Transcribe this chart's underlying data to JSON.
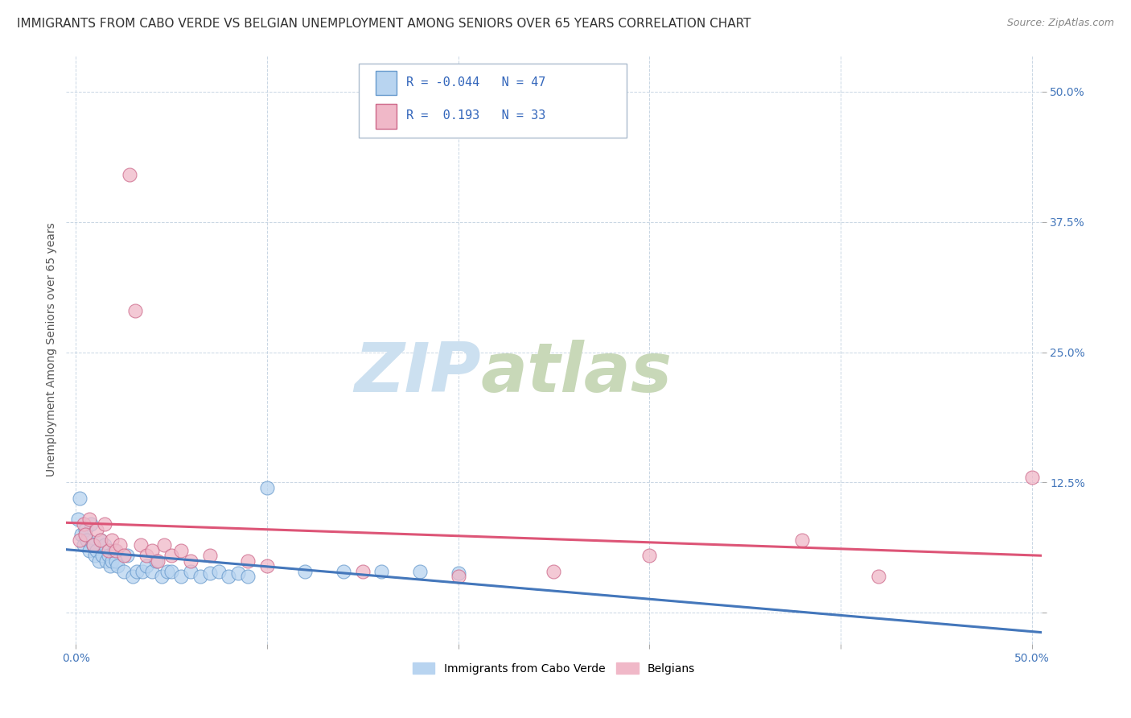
{
  "title": "IMMIGRANTS FROM CABO VERDE VS BELGIAN UNEMPLOYMENT AMONG SENIORS OVER 65 YEARS CORRELATION CHART",
  "source": "Source: ZipAtlas.com",
  "ylabel": "Unemployment Among Seniors over 65 years",
  "x_tick_positions": [
    0.0,
    0.1,
    0.2,
    0.3,
    0.4,
    0.5
  ],
  "x_tick_labels": [
    "0.0%",
    "",
    "",
    "",
    "",
    "50.0%"
  ],
  "y_tick_positions": [
    0.0,
    0.125,
    0.25,
    0.375,
    0.5
  ],
  "y_tick_labels": [
    "",
    "12.5%",
    "25.0%",
    "37.5%",
    "50.0%"
  ],
  "xlim": [
    -0.005,
    0.505
  ],
  "ylim": [
    -0.03,
    0.535
  ],
  "r_blue": -0.044,
  "n_blue": 47,
  "r_pink": 0.193,
  "n_pink": 33,
  "legend_label_blue": "Immigrants from Cabo Verde",
  "legend_label_pink": "Belgians",
  "blue_fill": "#b8d4f0",
  "pink_fill": "#f0b8c8",
  "blue_edge": "#6699cc",
  "pink_edge": "#cc6688",
  "blue_line": "#4477bb",
  "pink_line": "#dd5577",
  "title_fontsize": 11,
  "ylabel_fontsize": 10,
  "tick_fontsize": 10,
  "blue_scatter": [
    [
      0.001,
      0.09
    ],
    [
      0.002,
      0.11
    ],
    [
      0.003,
      0.075
    ],
    [
      0.004,
      0.065
    ],
    [
      0.005,
      0.08
    ],
    [
      0.006,
      0.07
    ],
    [
      0.007,
      0.06
    ],
    [
      0.008,
      0.085
    ],
    [
      0.009,
      0.065
    ],
    [
      0.01,
      0.055
    ],
    [
      0.011,
      0.06
    ],
    [
      0.012,
      0.05
    ],
    [
      0.013,
      0.07
    ],
    [
      0.014,
      0.055
    ],
    [
      0.015,
      0.065
    ],
    [
      0.016,
      0.05
    ],
    [
      0.017,
      0.055
    ],
    [
      0.018,
      0.045
    ],
    [
      0.019,
      0.05
    ],
    [
      0.02,
      0.06
    ],
    [
      0.021,
      0.05
    ],
    [
      0.022,
      0.045
    ],
    [
      0.025,
      0.04
    ],
    [
      0.027,
      0.055
    ],
    [
      0.03,
      0.035
    ],
    [
      0.032,
      0.04
    ],
    [
      0.035,
      0.04
    ],
    [
      0.037,
      0.045
    ],
    [
      0.04,
      0.04
    ],
    [
      0.042,
      0.05
    ],
    [
      0.045,
      0.035
    ],
    [
      0.048,
      0.04
    ],
    [
      0.05,
      0.04
    ],
    [
      0.055,
      0.035
    ],
    [
      0.06,
      0.04
    ],
    [
      0.065,
      0.035
    ],
    [
      0.07,
      0.038
    ],
    [
      0.075,
      0.04
    ],
    [
      0.08,
      0.035
    ],
    [
      0.085,
      0.038
    ],
    [
      0.09,
      0.035
    ],
    [
      0.1,
      0.12
    ],
    [
      0.12,
      0.04
    ],
    [
      0.14,
      0.04
    ],
    [
      0.16,
      0.04
    ],
    [
      0.18,
      0.04
    ],
    [
      0.2,
      0.038
    ]
  ],
  "pink_scatter": [
    [
      0.002,
      0.07
    ],
    [
      0.004,
      0.085
    ],
    [
      0.005,
      0.075
    ],
    [
      0.007,
      0.09
    ],
    [
      0.009,
      0.065
    ],
    [
      0.011,
      0.08
    ],
    [
      0.013,
      0.07
    ],
    [
      0.015,
      0.085
    ],
    [
      0.017,
      0.06
    ],
    [
      0.019,
      0.07
    ],
    [
      0.021,
      0.06
    ],
    [
      0.023,
      0.065
    ],
    [
      0.025,
      0.055
    ],
    [
      0.028,
      0.42
    ],
    [
      0.031,
      0.29
    ],
    [
      0.034,
      0.065
    ],
    [
      0.037,
      0.055
    ],
    [
      0.04,
      0.06
    ],
    [
      0.043,
      0.05
    ],
    [
      0.046,
      0.065
    ],
    [
      0.05,
      0.055
    ],
    [
      0.055,
      0.06
    ],
    [
      0.06,
      0.05
    ],
    [
      0.07,
      0.055
    ],
    [
      0.09,
      0.05
    ],
    [
      0.1,
      0.045
    ],
    [
      0.15,
      0.04
    ],
    [
      0.2,
      0.035
    ],
    [
      0.25,
      0.04
    ],
    [
      0.3,
      0.055
    ],
    [
      0.38,
      0.07
    ],
    [
      0.42,
      0.035
    ],
    [
      0.5,
      0.13
    ]
  ]
}
